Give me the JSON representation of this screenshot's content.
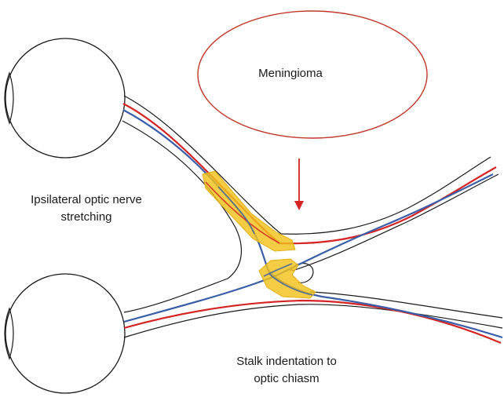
{
  "labels": {
    "meningioma": "Meningioma",
    "ipsilateral_line1": "Ipsilateral optic nerve",
    "ipsilateral_line2": "stretching",
    "stalk_line1": "Stalk indentation to",
    "stalk_line2": "optic chiasm"
  },
  "colors": {
    "outline": "#1a1a1a",
    "red_path": "#d42424",
    "blue_path": "#3b5ea8",
    "highlight": "#f2c21b",
    "highlight_edge": "#e2b01a",
    "meningioma_outline": "#c0392b",
    "arrow": "#d42424"
  }
}
